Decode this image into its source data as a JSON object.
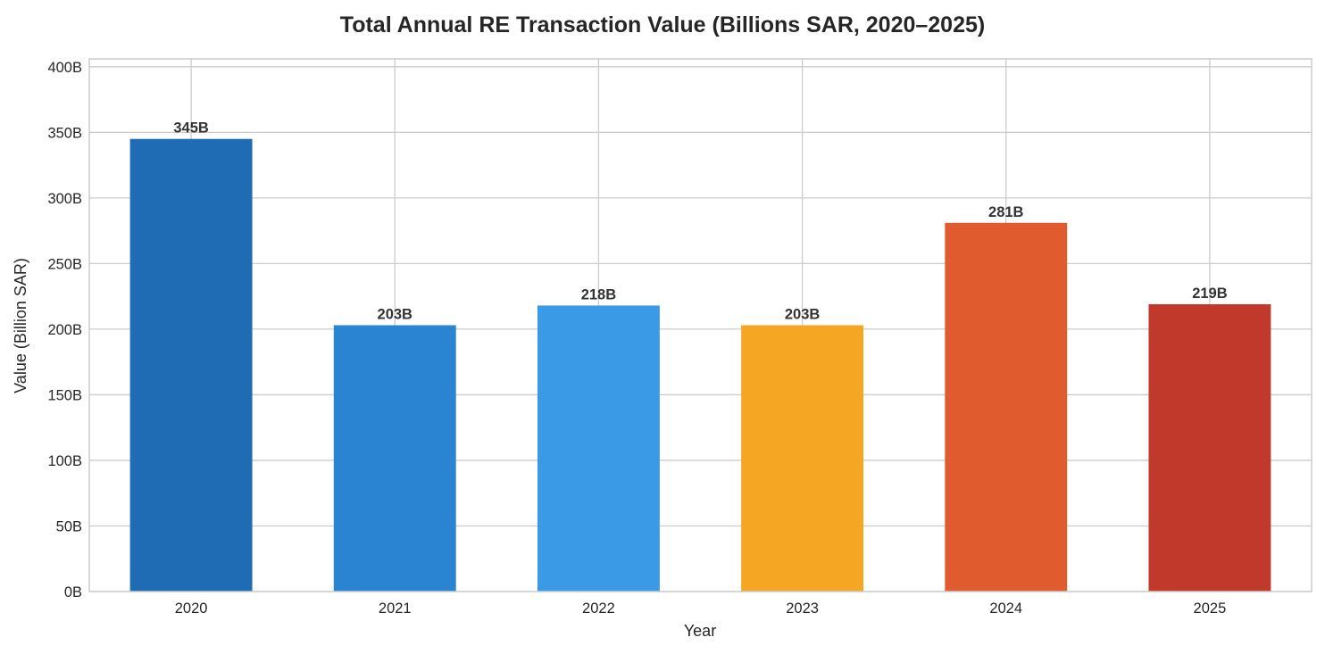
{
  "chart_data": {
    "type": "bar",
    "title": "Total Annual RE Transaction Value (Billions SAR, 2020–2025)",
    "xlabel": "Year",
    "ylabel": "Value (Billion SAR)",
    "categories": [
      "2020",
      "2021",
      "2022",
      "2023",
      "2024",
      "2025"
    ],
    "values": [
      345,
      203,
      218,
      203,
      281,
      219
    ],
    "data_labels": [
      "345B",
      "203B",
      "218B",
      "203B",
      "281B",
      "219B"
    ],
    "colors": [
      "#1f6cb4",
      "#2b84d2",
      "#3b9ae6",
      "#f5a623",
      "#e05c2e",
      "#c0392b"
    ],
    "ylim": [
      0,
      406
    ],
    "yticks": [
      0,
      50,
      100,
      150,
      200,
      250,
      300,
      350,
      400
    ],
    "ytick_labels": [
      "0B",
      "50B",
      "100B",
      "150B",
      "200B",
      "250B",
      "300B",
      "350B",
      "400B"
    ],
    "grid": true,
    "legend": "none"
  }
}
